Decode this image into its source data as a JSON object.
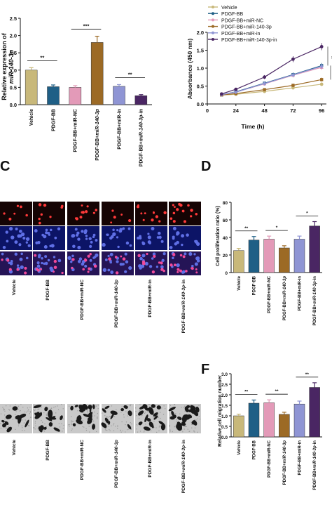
{
  "panel_labels": {
    "c": "C",
    "d": "D",
    "f": "F"
  },
  "groups": [
    "Vehicle",
    "PDGF-BB",
    "PDGF-BB+miR-NC",
    "PDGF-BB+miR-140-3p",
    "PDGF-BB+miR-in",
    "PDGF-BB+miR-140-3p-in"
  ],
  "colors": {
    "vehicle": "#c8b87a",
    "pdgf": "#1f5f86",
    "mirnc": "#e39ab8",
    "mir140": "#9c6a25",
    "mirin": "#8f95d4",
    "mir140in": "#4a2663"
  },
  "chart_data": [
    {
      "id": "A",
      "type": "bar",
      "ylabel_line1": "Relative expression of",
      "ylabel_line2": "miR-140-3p",
      "yticks": [
        "0.0",
        "0.5",
        "1.0",
        "1.5",
        "2.0",
        "2.5"
      ],
      "ylim": [
        0,
        2.5
      ],
      "values": [
        1.0,
        0.52,
        0.5,
        1.8,
        0.53,
        0.26
      ],
      "errors": [
        0.07,
        0.05,
        0.05,
        0.18,
        0.05,
        0.03
      ],
      "sig": [
        {
          "from": 0,
          "to": 1,
          "label": "**"
        },
        {
          "from": 2,
          "to": 3,
          "label": "***"
        },
        {
          "from": 4,
          "to": 5,
          "label": "**"
        }
      ]
    },
    {
      "id": "B",
      "type": "line",
      "xlabel": "Time (h)",
      "ylabel": "Absorbance (450 nm)",
      "x": [
        12,
        24,
        48,
        72,
        96
      ],
      "xticks": [
        "0",
        "24",
        "48",
        "72",
        "96"
      ],
      "yticks": [
        "0.0",
        "0.5",
        "1.0",
        "1.5",
        "2.0"
      ],
      "xlim": [
        0,
        100
      ],
      "ylim": [
        0,
        2.0
      ],
      "series": [
        {
          "name": "Vehicle",
          "values": [
            0.25,
            0.27,
            0.35,
            0.45,
            0.55
          ]
        },
        {
          "name": "PDGF-BB",
          "values": [
            0.26,
            0.34,
            0.58,
            0.82,
            1.07
          ]
        },
        {
          "name": "PDGF-BB+miR-NC",
          "values": [
            0.26,
            0.33,
            0.56,
            0.8,
            1.02
          ]
        },
        {
          "name": "PDGF-BB+miR-140-3p",
          "values": [
            0.25,
            0.29,
            0.4,
            0.52,
            0.68
          ]
        },
        {
          "name": "PDGF-BB+miR-in",
          "values": [
            0.26,
            0.33,
            0.57,
            0.81,
            1.05
          ]
        },
        {
          "name": "PDGF-BB+miR-140-3p-in",
          "values": [
            0.28,
            0.41,
            0.75,
            1.25,
            1.6
          ]
        }
      ],
      "sig_labels": [
        "**",
        "**",
        "**",
        "**"
      ]
    },
    {
      "id": "D",
      "type": "bar",
      "ylabel": "Cell proliferation ratio (%)",
      "yticks": [
        "0",
        "20",
        "40",
        "60",
        "80"
      ],
      "ylim": [
        0,
        80
      ],
      "values": [
        25,
        37,
        38,
        28,
        38,
        53
      ],
      "errors": [
        2.5,
        4,
        3.5,
        2.5,
        3.5,
        5
      ],
      "sig": [
        {
          "from": 0,
          "to": 1,
          "label": "**"
        },
        {
          "from": 2,
          "to": 3,
          "label": "*"
        },
        {
          "from": 4,
          "to": 5,
          "label": "*"
        }
      ]
    },
    {
      "id": "F",
      "type": "bar",
      "ylabel": "Relative cell migration number",
      "yticks": [
        "0.0",
        "0.5",
        "1.0",
        "1.5",
        "2.0",
        "2.5",
        "3.0"
      ],
      "ylim": [
        0,
        3.0
      ],
      "values": [
        1.0,
        1.6,
        1.62,
        1.07,
        1.56,
        2.35
      ],
      "errors": [
        0.08,
        0.15,
        0.14,
        0.1,
        0.14,
        0.22
      ],
      "sig": [
        {
          "from": 0,
          "to": 1,
          "label": "**"
        },
        {
          "from": 2,
          "to": 3,
          "label": "**"
        },
        {
          "from": 4,
          "to": 5,
          "label": "**"
        }
      ]
    }
  ]
}
